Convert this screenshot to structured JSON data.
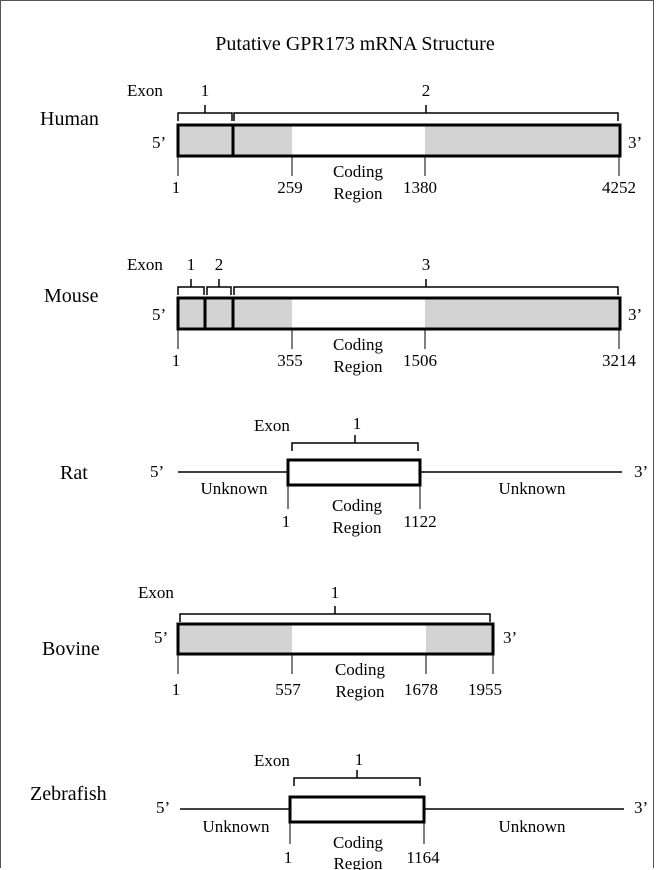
{
  "title": "Putative GPR173 mRNA Structure",
  "labels": {
    "exon": "Exon",
    "coding_line1": "Coding",
    "coding_line2": "Region",
    "unknown": "Unknown",
    "five_prime": "5’",
    "three_prime": "3’"
  },
  "species": [
    {
      "name": "Human",
      "exons": [
        "1",
        "2"
      ],
      "positions": [
        "1",
        "259",
        "1380",
        "4252"
      ]
    },
    {
      "name": "Mouse",
      "exons": [
        "1",
        "2",
        "3"
      ],
      "positions": [
        "1",
        "355",
        "1506",
        "3214"
      ]
    },
    {
      "name": "Rat",
      "exons": [
        "1"
      ],
      "positions": [
        "1",
        "1122"
      ]
    },
    {
      "name": "Bovine",
      "exons": [
        "1"
      ],
      "positions": [
        "1",
        "557",
        "1678",
        "1955"
      ]
    },
    {
      "name": "Zebrafish",
      "exons": [
        "1"
      ],
      "positions": [
        "1",
        "1164"
      ]
    }
  ],
  "colors": {
    "utr_fill": "#d3d3d3",
    "coding_fill": "#ffffff",
    "stroke": "#000000"
  }
}
